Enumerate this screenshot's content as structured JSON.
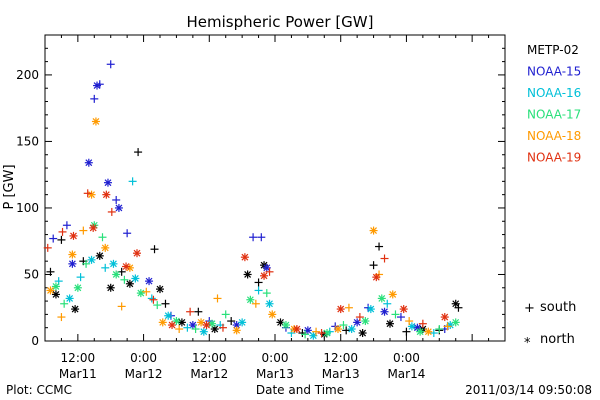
{
  "chart_data": {
    "type": "scatter",
    "title": "Hemispheric Power [GW]",
    "xlabel": "Date and Time",
    "ylabel": "P [GW]",
    "ylim": [
      0,
      230
    ],
    "xlim_hours": [
      -18,
      66
    ],
    "y_ticks": [
      0,
      50,
      100,
      150,
      200
    ],
    "x_major_ticks": [
      {
        "label": "12:00",
        "date": "Mar11",
        "offset_h": -12
      },
      {
        "label": "0:00",
        "date": "Mar12",
        "offset_h": 0
      },
      {
        "label": "12:00",
        "date": "Mar12",
        "offset_h": 12
      },
      {
        "label": "0:00",
        "date": "Mar13",
        "offset_h": 24
      },
      {
        "label": "12:00",
        "date": "Mar13",
        "offset_h": 36
      },
      {
        "label": "0:00",
        "date": "Mar14",
        "offset_h": 48
      }
    ],
    "grid": false,
    "legend_position": "right",
    "marker_legend": {
      "plus": "south",
      "star": "north"
    },
    "footer_left": "Plot: CCMC",
    "footer_right": "2011/03/14 09:50:08",
    "series": [
      {
        "name": "METP-02",
        "color": "#000000",
        "points": [
          {
            "h": -17,
            "v": 52,
            "m": "plus"
          },
          {
            "h": -16,
            "v": 35,
            "m": "star"
          },
          {
            "h": -15,
            "v": 76,
            "m": "plus"
          },
          {
            "h": -12.5,
            "v": 24,
            "m": "star"
          },
          {
            "h": -11,
            "v": 60,
            "m": "plus"
          },
          {
            "h": -8,
            "v": 64,
            "m": "star"
          },
          {
            "h": -6,
            "v": 40,
            "m": "star"
          },
          {
            "h": -4,
            "v": 52,
            "m": "plus"
          },
          {
            "h": -1,
            "v": 142,
            "m": "plus"
          },
          {
            "h": -2.5,
            "v": 43,
            "m": "star"
          },
          {
            "h": 2,
            "v": 69,
            "m": "plus"
          },
          {
            "h": 3,
            "v": 39,
            "m": "star"
          },
          {
            "h": 4,
            "v": 28,
            "m": "plus"
          },
          {
            "h": 7,
            "v": 14,
            "m": "star"
          },
          {
            "h": 10,
            "v": 22,
            "m": "plus"
          },
          {
            "h": 13,
            "v": 9,
            "m": "star"
          },
          {
            "h": 16,
            "v": 15,
            "m": "plus"
          },
          {
            "h": 19,
            "v": 50,
            "m": "star"
          },
          {
            "h": 21,
            "v": 44,
            "m": "plus"
          },
          {
            "h": 22,
            "v": 57,
            "m": "star"
          },
          {
            "h": 25,
            "v": 14,
            "m": "star"
          },
          {
            "h": 29,
            "v": 6,
            "m": "plus"
          },
          {
            "h": 33,
            "v": 5,
            "m": "star"
          },
          {
            "h": 37,
            "v": 8,
            "m": "plus"
          },
          {
            "h": 40,
            "v": 6,
            "m": "star"
          },
          {
            "h": 42,
            "v": 57,
            "m": "plus"
          },
          {
            "h": 43,
            "v": 71,
            "m": "plus"
          },
          {
            "h": 45,
            "v": 13,
            "m": "star"
          },
          {
            "h": 48,
            "v": 7,
            "m": "plus"
          },
          {
            "h": 51,
            "v": 9,
            "m": "star"
          },
          {
            "h": 54,
            "v": 8,
            "m": "plus"
          },
          {
            "h": 57,
            "v": 28,
            "m": "star"
          },
          {
            "h": 57.5,
            "v": 25,
            "m": "plus"
          }
        ]
      },
      {
        "name": "NOAA-15",
        "color": "#1f1fd0",
        "points": [
          {
            "h": -16.5,
            "v": 77,
            "m": "plus"
          },
          {
            "h": -14,
            "v": 87,
            "m": "plus"
          },
          {
            "h": -13,
            "v": 58,
            "m": "star"
          },
          {
            "h": -10,
            "v": 134,
            "m": "star"
          },
          {
            "h": -9,
            "v": 182,
            "m": "plus"
          },
          {
            "h": -8.5,
            "v": 192,
            "m": "star"
          },
          {
            "h": -8,
            "v": 193,
            "m": "plus"
          },
          {
            "h": -6.5,
            "v": 119,
            "m": "star"
          },
          {
            "h": -6,
            "v": 208,
            "m": "plus"
          },
          {
            "h": -5,
            "v": 106,
            "m": "plus"
          },
          {
            "h": -4.5,
            "v": 100,
            "m": "star"
          },
          {
            "h": -3,
            "v": 81,
            "m": "plus"
          },
          {
            "h": 1,
            "v": 45,
            "m": "star"
          },
          {
            "h": 5,
            "v": 19,
            "m": "plus"
          },
          {
            "h": 9,
            "v": 12,
            "m": "star"
          },
          {
            "h": 12,
            "v": 15,
            "m": "plus"
          },
          {
            "h": 17,
            "v": 12,
            "m": "star"
          },
          {
            "h": 20,
            "v": 78,
            "m": "plus"
          },
          {
            "h": 21.5,
            "v": 78,
            "m": "plus"
          },
          {
            "h": 22.5,
            "v": 55,
            "m": "star"
          },
          {
            "h": 26,
            "v": 10,
            "m": "plus"
          },
          {
            "h": 30,
            "v": 8,
            "m": "star"
          },
          {
            "h": 35,
            "v": 11,
            "m": "plus"
          },
          {
            "h": 39,
            "v": 14,
            "m": "star"
          },
          {
            "h": 41,
            "v": 25,
            "m": "plus"
          },
          {
            "h": 44,
            "v": 22,
            "m": "star"
          },
          {
            "h": 47,
            "v": 18,
            "m": "plus"
          },
          {
            "h": 50,
            "v": 10,
            "m": "star"
          },
          {
            "h": 55,
            "v": 9,
            "m": "plus"
          }
        ]
      },
      {
        "name": "NOAA-16",
        "color": "#00c0d8",
        "points": [
          {
            "h": -15.5,
            "v": 45,
            "m": "plus"
          },
          {
            "h": -13.5,
            "v": 32,
            "m": "star"
          },
          {
            "h": -11.5,
            "v": 48,
            "m": "plus"
          },
          {
            "h": -9.5,
            "v": 61,
            "m": "star"
          },
          {
            "h": -7,
            "v": 55,
            "m": "plus"
          },
          {
            "h": -5.5,
            "v": 58,
            "m": "star"
          },
          {
            "h": -2,
            "v": 120,
            "m": "plus"
          },
          {
            "h": -1.5,
            "v": 47,
            "m": "star"
          },
          {
            "h": 1.5,
            "v": 32,
            "m": "plus"
          },
          {
            "h": 4.5,
            "v": 19,
            "m": "star"
          },
          {
            "h": 8,
            "v": 10,
            "m": "plus"
          },
          {
            "h": 11,
            "v": 7,
            "m": "star"
          },
          {
            "h": 14,
            "v": 12,
            "m": "plus"
          },
          {
            "h": 18,
            "v": 14,
            "m": "star"
          },
          {
            "h": 21,
            "v": 38,
            "m": "plus"
          },
          {
            "h": 23,
            "v": 28,
            "m": "star"
          },
          {
            "h": 27,
            "v": 6,
            "m": "plus"
          },
          {
            "h": 31,
            "v": 4,
            "m": "star"
          },
          {
            "h": 34,
            "v": 7,
            "m": "plus"
          },
          {
            "h": 38,
            "v": 9,
            "m": "star"
          },
          {
            "h": 41.5,
            "v": 24,
            "m": "star"
          },
          {
            "h": 44.5,
            "v": 28,
            "m": "plus"
          },
          {
            "h": 49,
            "v": 11,
            "m": "star"
          },
          {
            "h": 53,
            "v": 6,
            "m": "plus"
          },
          {
            "h": 56,
            "v": 12,
            "m": "star"
          }
        ]
      },
      {
        "name": "NOAA-17",
        "color": "#28e07a",
        "points": [
          {
            "h": -16,
            "v": 41,
            "m": "star"
          },
          {
            "h": -14.5,
            "v": 28,
            "m": "plus"
          },
          {
            "h": -12,
            "v": 40,
            "m": "star"
          },
          {
            "h": -10.5,
            "v": 58,
            "m": "plus"
          },
          {
            "h": -9,
            "v": 87,
            "m": "star"
          },
          {
            "h": -7.5,
            "v": 78,
            "m": "plus"
          },
          {
            "h": -5,
            "v": 50,
            "m": "star"
          },
          {
            "h": -3.5,
            "v": 46,
            "m": "plus"
          },
          {
            "h": -0.5,
            "v": 36,
            "m": "star"
          },
          {
            "h": 2.5,
            "v": 27,
            "m": "plus"
          },
          {
            "h": 6,
            "v": 15,
            "m": "star"
          },
          {
            "h": 9.5,
            "v": 9,
            "m": "plus"
          },
          {
            "h": 12.5,
            "v": 13,
            "m": "star"
          },
          {
            "h": 15,
            "v": 20,
            "m": "plus"
          },
          {
            "h": 19.5,
            "v": 31,
            "m": "star"
          },
          {
            "h": 22.5,
            "v": 36,
            "m": "plus"
          },
          {
            "h": 26,
            "v": 12,
            "m": "star"
          },
          {
            "h": 29.5,
            "v": 5,
            "m": "plus"
          },
          {
            "h": 33.5,
            "v": 6,
            "m": "star"
          },
          {
            "h": 36.5,
            "v": 12,
            "m": "plus"
          },
          {
            "h": 40.5,
            "v": 15,
            "m": "star"
          },
          {
            "h": 43.5,
            "v": 32,
            "m": "star"
          },
          {
            "h": 46,
            "v": 20,
            "m": "plus"
          },
          {
            "h": 50.5,
            "v": 7,
            "m": "star"
          },
          {
            "h": 54,
            "v": 9,
            "m": "plus"
          },
          {
            "h": 57,
            "v": 14,
            "m": "star"
          }
        ]
      },
      {
        "name": "NOAA-18",
        "color": "#ff9a00",
        "points": [
          {
            "h": -17,
            "v": 38,
            "m": "star"
          },
          {
            "h": -15,
            "v": 18,
            "m": "plus"
          },
          {
            "h": -13,
            "v": 65,
            "m": "star"
          },
          {
            "h": -11,
            "v": 83,
            "m": "plus"
          },
          {
            "h": -9.5,
            "v": 110,
            "m": "star"
          },
          {
            "h": -8.7,
            "v": 165,
            "m": "star"
          },
          {
            "h": -7,
            "v": 70,
            "m": "star"
          },
          {
            "h": -4,
            "v": 26,
            "m": "plus"
          },
          {
            "h": -2.5,
            "v": 55,
            "m": "star"
          },
          {
            "h": 0.5,
            "v": 37,
            "m": "plus"
          },
          {
            "h": 3.5,
            "v": 14,
            "m": "star"
          },
          {
            "h": 6.5,
            "v": 9,
            "m": "plus"
          },
          {
            "h": 10.5,
            "v": 14,
            "m": "star"
          },
          {
            "h": 13.5,
            "v": 32,
            "m": "plus"
          },
          {
            "h": 17,
            "v": 8,
            "m": "star"
          },
          {
            "h": 20.5,
            "v": 28,
            "m": "plus"
          },
          {
            "h": 23.5,
            "v": 20,
            "m": "star"
          },
          {
            "h": 27.5,
            "v": 9,
            "m": "star"
          },
          {
            "h": 31.5,
            "v": 7,
            "m": "plus"
          },
          {
            "h": 35.5,
            "v": 9,
            "m": "star"
          },
          {
            "h": 37.5,
            "v": 25,
            "m": "plus"
          },
          {
            "h": 42,
            "v": 83,
            "m": "star"
          },
          {
            "h": 43,
            "v": 50,
            "m": "plus"
          },
          {
            "h": 45.5,
            "v": 35,
            "m": "star"
          },
          {
            "h": 48.5,
            "v": 15,
            "m": "plus"
          },
          {
            "h": 52,
            "v": 7,
            "m": "star"
          },
          {
            "h": 55.5,
            "v": 11,
            "m": "plus"
          }
        ]
      },
      {
        "name": "NOAA-19",
        "color": "#e03010",
        "points": [
          {
            "h": -17.5,
            "v": 70,
            "m": "plus"
          },
          {
            "h": -14.8,
            "v": 82,
            "m": "plus"
          },
          {
            "h": -12.8,
            "v": 79,
            "m": "star"
          },
          {
            "h": -10.2,
            "v": 111,
            "m": "plus"
          },
          {
            "h": -9.2,
            "v": 85,
            "m": "star"
          },
          {
            "h": -6.8,
            "v": 110,
            "m": "star"
          },
          {
            "h": -5.8,
            "v": 97,
            "m": "plus"
          },
          {
            "h": -3.2,
            "v": 56,
            "m": "star"
          },
          {
            "h": -1.2,
            "v": 66,
            "m": "star"
          },
          {
            "h": 1.8,
            "v": 31,
            "m": "plus"
          },
          {
            "h": 5.2,
            "v": 12,
            "m": "star"
          },
          {
            "h": 8.5,
            "v": 22,
            "m": "plus"
          },
          {
            "h": 11.5,
            "v": 12,
            "m": "star"
          },
          {
            "h": 14.5,
            "v": 10,
            "m": "plus"
          },
          {
            "h": 18.5,
            "v": 63,
            "m": "star"
          },
          {
            "h": 22,
            "v": 49,
            "m": "star"
          },
          {
            "h": 23,
            "v": 52,
            "m": "plus"
          },
          {
            "h": 28,
            "v": 9,
            "m": "star"
          },
          {
            "h": 32.5,
            "v": 6,
            "m": "plus"
          },
          {
            "h": 36,
            "v": 24,
            "m": "star"
          },
          {
            "h": 39.5,
            "v": 18,
            "m": "plus"
          },
          {
            "h": 42.5,
            "v": 48,
            "m": "star"
          },
          {
            "h": 44,
            "v": 62,
            "m": "plus"
          },
          {
            "h": 47.5,
            "v": 24,
            "m": "star"
          },
          {
            "h": 51,
            "v": 13,
            "m": "plus"
          },
          {
            "h": 55,
            "v": 18,
            "m": "star"
          }
        ]
      }
    ]
  }
}
